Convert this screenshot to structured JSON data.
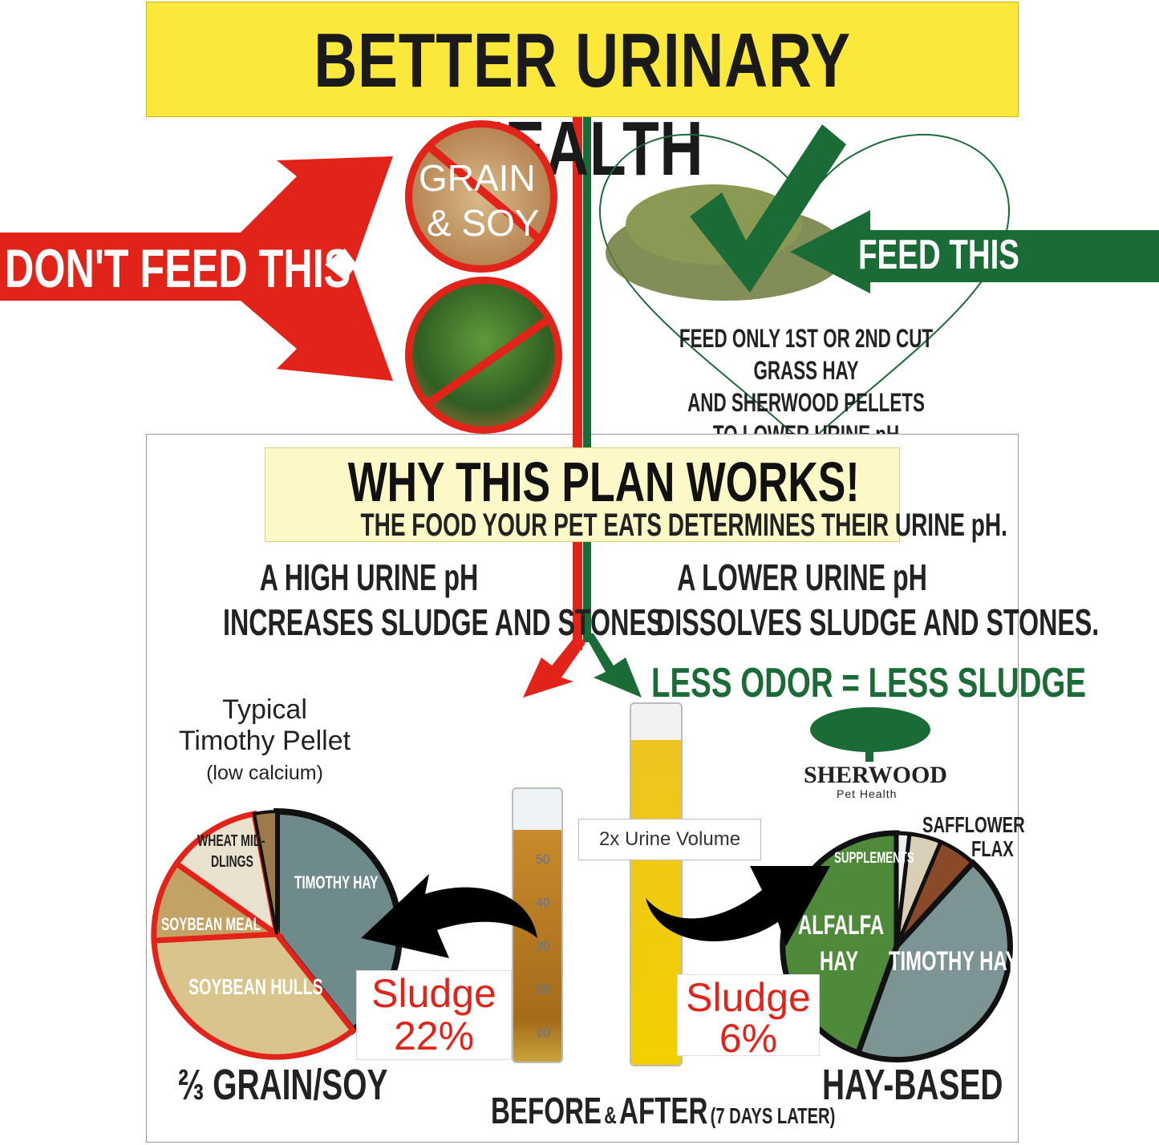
{
  "title": "BETTER  URINARY HEALTH",
  "dont_feed": {
    "label": "DON'T FEED THIS",
    "items": [
      "GRAIN & SOY",
      "fruits & vegetables"
    ],
    "grain_text": [
      "GRAIN",
      "& SOY"
    ],
    "color": "#e2231a"
  },
  "feed": {
    "label": "FEED THIS",
    "lines": [
      "FEED ONLY 1ST OR 2ND CUT GRASS HAY",
      "AND SHERWOOD PELLETS",
      "TO LOWER URINE pH"
    ],
    "color": "#1a6b35"
  },
  "why": {
    "title": "WHY THIS PLAN WORKS!",
    "subtitle": "THE FOOD YOUR PET EATS DETERMINES THEIR URINE pH."
  },
  "high_ph": [
    "A HIGH URINE pH",
    "INCREASES SLUDGE AND STONES."
  ],
  "low_ph": [
    "A LOWER URINE pH",
    "DISSOLVES SLUDGE AND STONES."
  ],
  "less_odor": "LESS ODOR = LESS SLUDGE",
  "typical": {
    "line1": "Typical",
    "line2": "Timothy Pellet",
    "line3": "(low calcium)"
  },
  "left_pie": {
    "slices": [
      "WHEAT MID-",
      "DLINGS",
      "SOYBEAN MEAL",
      "SOYBEAN HULLS",
      "TIMOTHY HAY"
    ],
    "caption": "⅔ GRAIN/SOY"
  },
  "right_pie": {
    "slices": [
      "SUPPLEMENTS",
      "ALFALFA",
      "HAY",
      "TIMOTHY HAY"
    ],
    "outer_labels": [
      "SAFFLOWER",
      "FLAX"
    ],
    "caption": "HAY-BASED"
  },
  "sludge_before": {
    "label": "Sludge",
    "value": "22%"
  },
  "sludge_after": {
    "label": "Sludge",
    "value": "6%"
  },
  "urine_volume": "2x Urine Volume",
  "cylinder_marks": [
    "50",
    "40",
    "30",
    "20",
    "10"
  ],
  "brand": {
    "name": "SHERWOOD",
    "sub": "Pet Health"
  },
  "before_after": {
    "before": "BEFORE",
    "amp": "&",
    "after": "AFTER",
    "note": "(7 DAYS LATER)"
  }
}
